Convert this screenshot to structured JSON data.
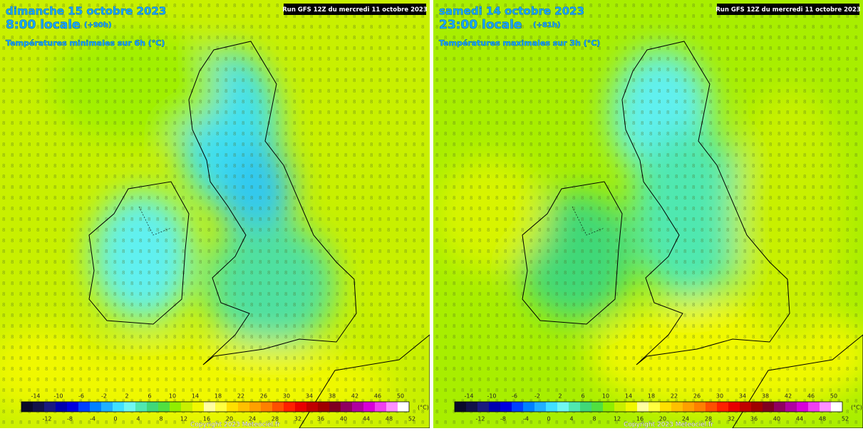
{
  "panels": [
    {
      "date": "dimanche 15 octobre 2023",
      "time": "8:00 locale",
      "lead": "(+90h)",
      "variable": "Températures minimales sur 6h (°C)",
      "run": "Run GFS 12Z du mercredi 11 octobre 2023"
    },
    {
      "date": "samedi 14 octobre 2023",
      "time": "23:00 locale",
      "lead": "(+81h)",
      "variable": "Températures maximales sur 3h (°C)",
      "run": "Run GFS 12Z du mercredi 11 octobre 2023"
    }
  ],
  "scale": {
    "top_labels": [
      "-14",
      "-10",
      "-6",
      "-2",
      "2",
      "6",
      "10",
      "14",
      "18",
      "22",
      "26",
      "30",
      "34",
      "38",
      "42",
      "46",
      "50"
    ],
    "bottom_labels": [
      "-12",
      "-8",
      "-4",
      "0",
      "4",
      "8",
      "12",
      "16",
      "20",
      "24",
      "28",
      "32",
      "36",
      "40",
      "44",
      "48",
      "52"
    ],
    "unit": "(°C)",
    "colors": [
      "#0a0a2a",
      "#12124a",
      "#1a1a80",
      "#0000b0",
      "#0000e0",
      "#0040ff",
      "#0080ff",
      "#20b0ff",
      "#40e0ff",
      "#70f8f0",
      "#50e8b0",
      "#40d878",
      "#50e040",
      "#90ee00",
      "#c8f000",
      "#f0f800",
      "#ffffa0",
      "#ffff40",
      "#ffe000",
      "#ffc000",
      "#ffa000",
      "#ff8000",
      "#ff5000",
      "#ff2000",
      "#e80000",
      "#c00000",
      "#a00000",
      "#800020",
      "#900060",
      "#b000a0",
      "#d800d8",
      "#f040f0",
      "#ff90ff",
      "#ffffff"
    ]
  },
  "copyright": "Copyright 2023 Meteociel.fr"
}
